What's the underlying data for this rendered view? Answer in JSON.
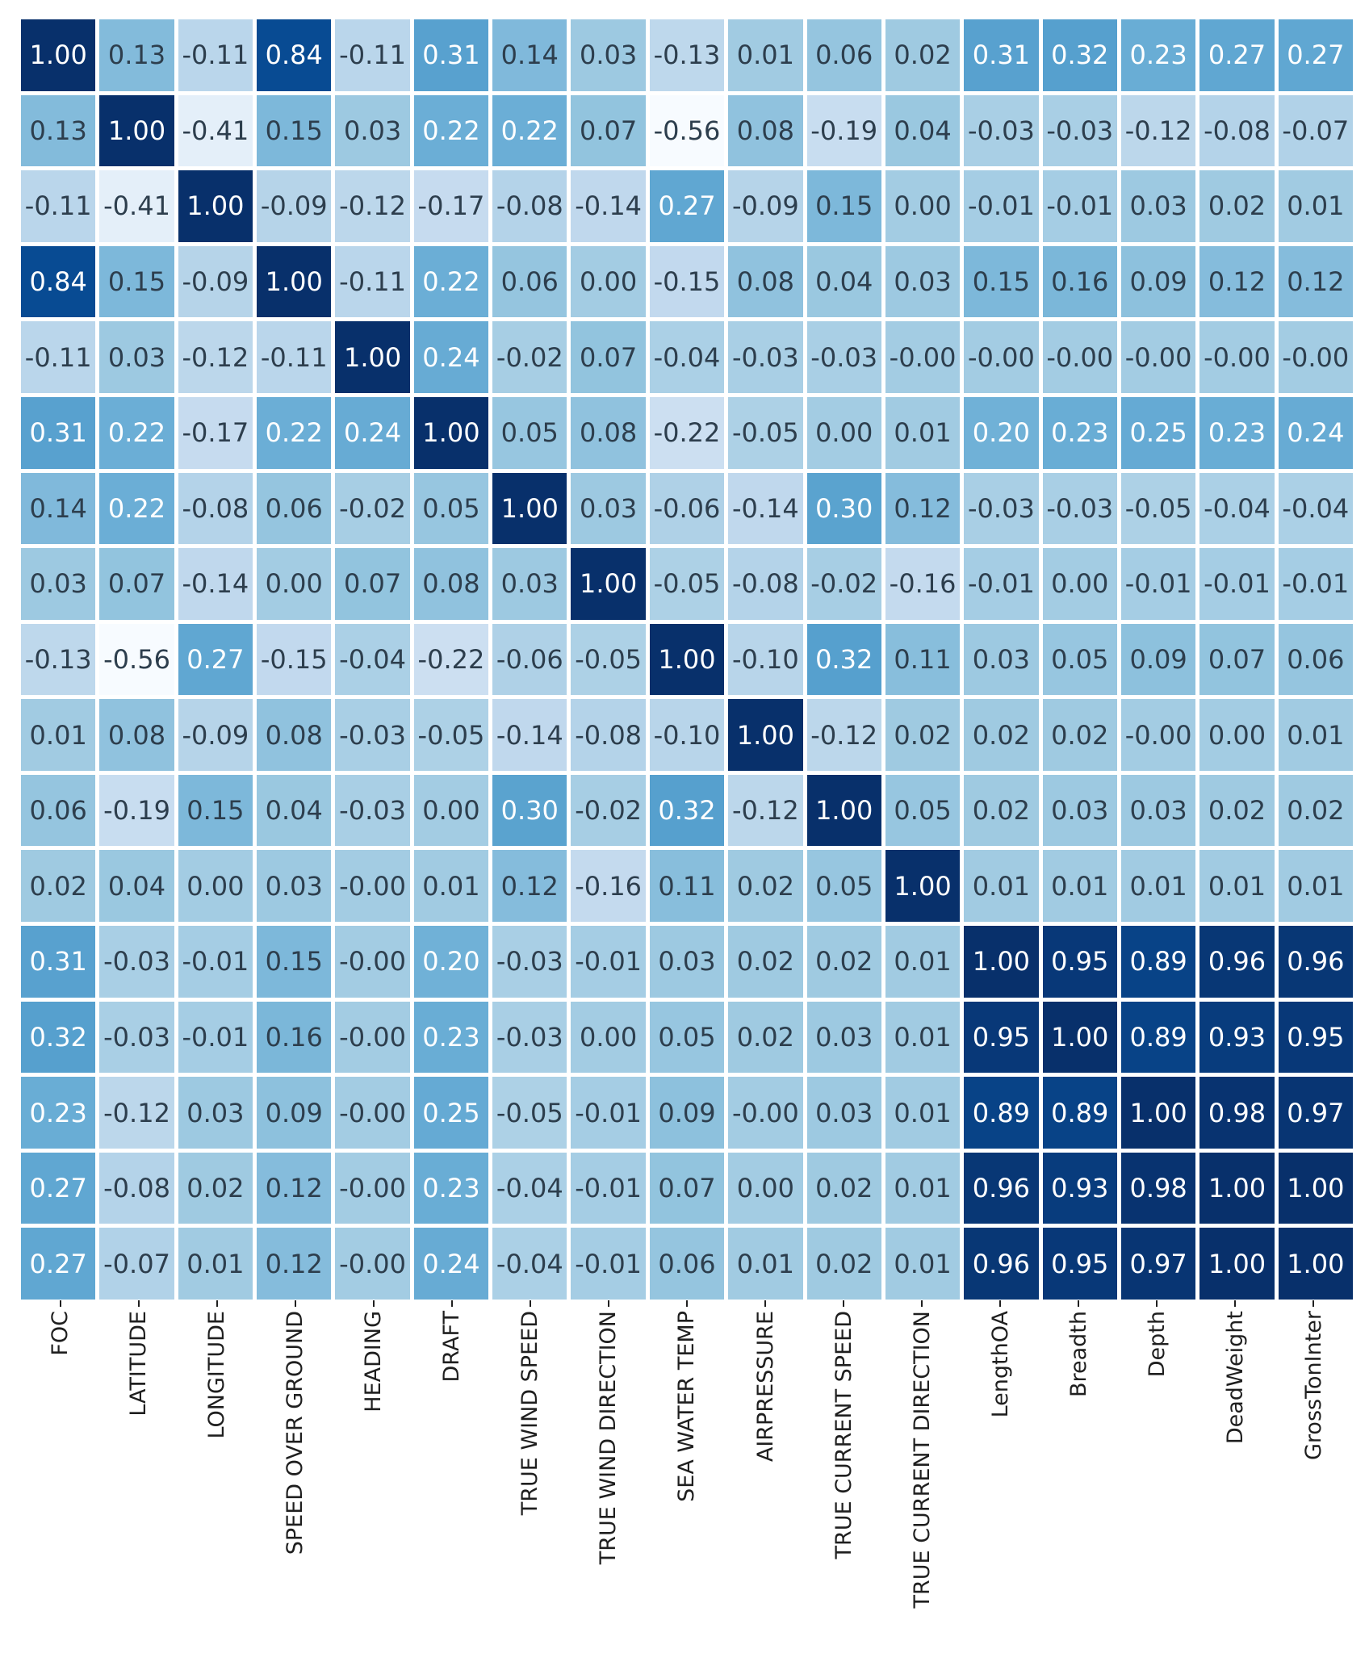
{
  "chart_data": {
    "type": "heatmap",
    "title": "",
    "categories": [
      "FOC",
      "LATITUDE",
      "LONGITUDE",
      "SPEED OVER GROUND",
      "HEADING",
      "DRAFT",
      "TRUE WIND SPEED",
      "TRUE WIND DIRECTION",
      "SEA WATER TEMP",
      "AIRPRESSURE",
      "TRUE CURRENT SPEED",
      "TRUE CURRENT DIRECTION",
      "LengthOA",
      "Breadth",
      "Depth",
      "DeadWeight",
      "GrossTonInter"
    ],
    "matrix": [
      [
        "1.00",
        "0.13",
        "-0.11",
        "0.84",
        "-0.11",
        "0.31",
        "0.14",
        "0.03",
        "-0.13",
        "0.01",
        "0.06",
        "0.02",
        "0.31",
        "0.32",
        "0.23",
        "0.27",
        "0.27"
      ],
      [
        "0.13",
        "1.00",
        "-0.41",
        "0.15",
        "0.03",
        "0.22",
        "0.22",
        "0.07",
        "-0.56",
        "0.08",
        "-0.19",
        "0.04",
        "-0.03",
        "-0.03",
        "-0.12",
        "-0.08",
        "-0.07"
      ],
      [
        "-0.11",
        "-0.41",
        "1.00",
        "-0.09",
        "-0.12",
        "-0.17",
        "-0.08",
        "-0.14",
        "0.27",
        "-0.09",
        "0.15",
        "0.00",
        "-0.01",
        "-0.01",
        "0.03",
        "0.02",
        "0.01"
      ],
      [
        "0.84",
        "0.15",
        "-0.09",
        "1.00",
        "-0.11",
        "0.22",
        "0.06",
        "0.00",
        "-0.15",
        "0.08",
        "0.04",
        "0.03",
        "0.15",
        "0.16",
        "0.09",
        "0.12",
        "0.12"
      ],
      [
        "-0.11",
        "0.03",
        "-0.12",
        "-0.11",
        "1.00",
        "0.24",
        "-0.02",
        "0.07",
        "-0.04",
        "-0.03",
        "-0.03",
        "-0.00",
        "-0.00",
        "-0.00",
        "-0.00",
        "-0.00",
        "-0.00"
      ],
      [
        "0.31",
        "0.22",
        "-0.17",
        "0.22",
        "0.24",
        "1.00",
        "0.05",
        "0.08",
        "-0.22",
        "-0.05",
        "0.00",
        "0.01",
        "0.20",
        "0.23",
        "0.25",
        "0.23",
        "0.24"
      ],
      [
        "0.14",
        "0.22",
        "-0.08",
        "0.06",
        "-0.02",
        "0.05",
        "1.00",
        "0.03",
        "-0.06",
        "-0.14",
        "0.30",
        "0.12",
        "-0.03",
        "-0.03",
        "-0.05",
        "-0.04",
        "-0.04"
      ],
      [
        "0.03",
        "0.07",
        "-0.14",
        "0.00",
        "0.07",
        "0.08",
        "0.03",
        "1.00",
        "-0.05",
        "-0.08",
        "-0.02",
        "-0.16",
        "-0.01",
        "0.00",
        "-0.01",
        "-0.01",
        "-0.01"
      ],
      [
        "-0.13",
        "-0.56",
        "0.27",
        "-0.15",
        "-0.04",
        "-0.22",
        "-0.06",
        "-0.05",
        "1.00",
        "-0.10",
        "0.32",
        "0.11",
        "0.03",
        "0.05",
        "0.09",
        "0.07",
        "0.06"
      ],
      [
        "0.01",
        "0.08",
        "-0.09",
        "0.08",
        "-0.03",
        "-0.05",
        "-0.14",
        "-0.08",
        "-0.10",
        "1.00",
        "-0.12",
        "0.02",
        "0.02",
        "0.02",
        "-0.00",
        "0.00",
        "0.01"
      ],
      [
        "0.06",
        "-0.19",
        "0.15",
        "0.04",
        "-0.03",
        "0.00",
        "0.30",
        "-0.02",
        "0.32",
        "-0.12",
        "1.00",
        "0.05",
        "0.02",
        "0.03",
        "0.03",
        "0.02",
        "0.02"
      ],
      [
        "0.02",
        "0.04",
        "0.00",
        "0.03",
        "-0.00",
        "0.01",
        "0.12",
        "-0.16",
        "0.11",
        "0.02",
        "0.05",
        "1.00",
        "0.01",
        "0.01",
        "0.01",
        "0.01",
        "0.01"
      ],
      [
        "0.31",
        "-0.03",
        "-0.01",
        "0.15",
        "-0.00",
        "0.20",
        "-0.03",
        "-0.01",
        "0.03",
        "0.02",
        "0.02",
        "0.01",
        "1.00",
        "0.95",
        "0.89",
        "0.96",
        "0.96"
      ],
      [
        "0.32",
        "-0.03",
        "-0.01",
        "0.16",
        "-0.00",
        "0.23",
        "-0.03",
        "0.00",
        "0.05",
        "0.02",
        "0.03",
        "0.01",
        "0.95",
        "1.00",
        "0.89",
        "0.93",
        "0.95"
      ],
      [
        "0.23",
        "-0.12",
        "0.03",
        "0.09",
        "-0.00",
        "0.25",
        "-0.05",
        "-0.01",
        "0.09",
        "-0.00",
        "0.03",
        "0.01",
        "0.89",
        "0.89",
        "1.00",
        "0.98",
        "0.97"
      ],
      [
        "0.27",
        "-0.08",
        "0.02",
        "0.12",
        "-0.00",
        "0.23",
        "-0.04",
        "-0.01",
        "0.07",
        "0.00",
        "0.02",
        "0.01",
        "0.96",
        "0.93",
        "0.98",
        "1.00",
        "1.00"
      ],
      [
        "0.27",
        "-0.07",
        "0.01",
        "0.12",
        "-0.00",
        "0.24",
        "-0.04",
        "-0.01",
        "0.06",
        "0.01",
        "0.02",
        "0.01",
        "0.96",
        "0.95",
        "0.97",
        "1.00",
        "1.00"
      ]
    ],
    "colormap": "Blues",
    "vmin": -0.56,
    "vmax": 1.0,
    "annotation_format": ".2f",
    "legend_position": "none"
  },
  "colors": {
    "background": "#ffffff",
    "gridline": "#ffffff",
    "annot_light": "#ffffff",
    "annot_dark": "#2d3e4d",
    "axis_label": "#1f1f1f",
    "tick": "#1f1f1f"
  }
}
